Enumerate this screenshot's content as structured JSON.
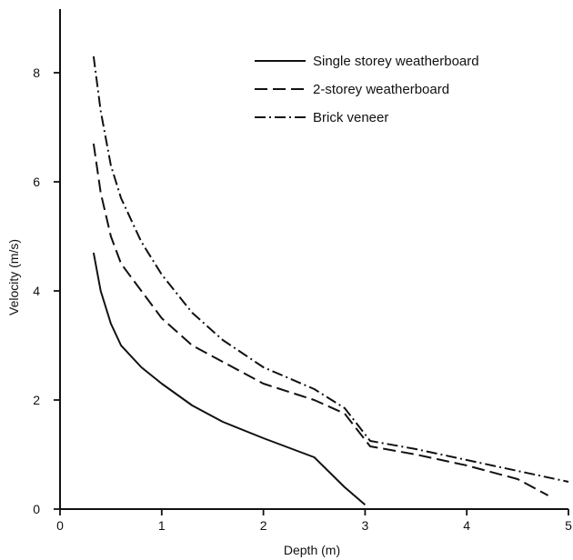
{
  "chart_data": {
    "type": "line",
    "title": "",
    "xlabel": "Depth (m)",
    "ylabel": "Velocity (m/s)",
    "xlim": [
      0,
      5
    ],
    "ylim": [
      0,
      9
    ],
    "x_ticks": [
      "0",
      "1",
      "2",
      "3",
      "4",
      "5"
    ],
    "y_ticks": [
      "0",
      "2",
      "4",
      "6",
      "8"
    ],
    "x_tick_values": [
      0,
      1,
      2,
      3,
      4,
      5
    ],
    "y_tick_values": [
      0,
      2,
      4,
      6,
      8
    ],
    "grid": false,
    "legend_position": "top-right",
    "series": [
      {
        "name": "Single storey weatherboard",
        "dash": "solid",
        "x": [
          0.33,
          0.4,
          0.5,
          0.6,
          0.8,
          1.0,
          1.3,
          1.6,
          2.0,
          2.5,
          2.8,
          3.0
        ],
        "y": [
          4.7,
          4.0,
          3.4,
          3.0,
          2.6,
          2.3,
          1.9,
          1.6,
          1.3,
          0.95,
          0.4,
          0.08
        ]
      },
      {
        "name": "2-storey weatherboard",
        "dash": "dashed",
        "x": [
          0.33,
          0.4,
          0.5,
          0.6,
          0.8,
          1.0,
          1.3,
          1.6,
          2.0,
          2.5,
          2.8,
          3.05,
          3.5,
          4.0,
          4.5,
          4.8
        ],
        "y": [
          6.7,
          5.8,
          5.0,
          4.5,
          4.0,
          3.5,
          3.0,
          2.7,
          2.3,
          2.0,
          1.75,
          1.15,
          1.0,
          0.8,
          0.55,
          0.25
        ]
      },
      {
        "name": "Brick veneer",
        "dash": "dash-dot",
        "x": [
          0.33,
          0.4,
          0.5,
          0.6,
          0.8,
          1.0,
          1.3,
          1.6,
          2.0,
          2.5,
          2.8,
          3.05,
          3.5,
          4.0,
          4.5,
          5.0
        ],
        "y": [
          8.3,
          7.3,
          6.3,
          5.7,
          4.9,
          4.3,
          3.6,
          3.1,
          2.6,
          2.2,
          1.85,
          1.25,
          1.1,
          0.9,
          0.7,
          0.5
        ]
      }
    ]
  }
}
